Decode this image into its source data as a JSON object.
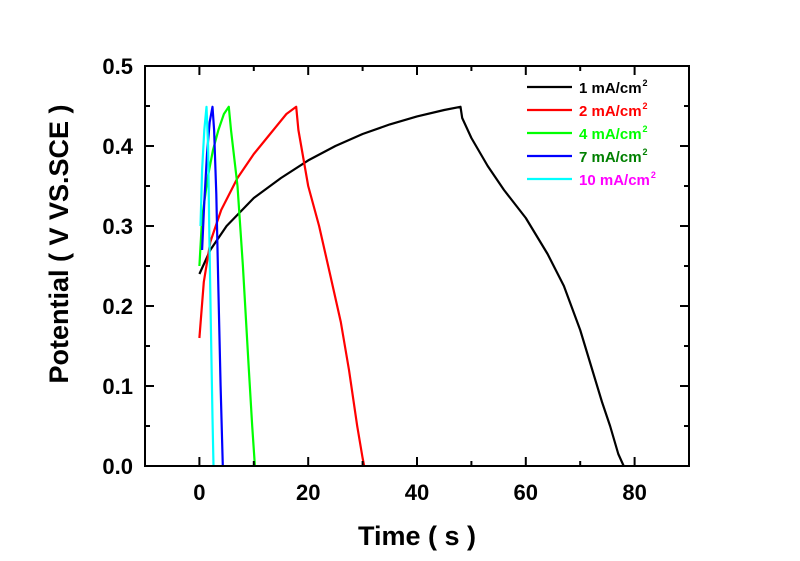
{
  "chart_data": {
    "type": "line",
    "title": "",
    "xlabel": "Time ( s )",
    "ylabel": "Potential ( V VS.SCE )",
    "xlim": [
      -10,
      90
    ],
    "ylim": [
      0.0,
      0.5
    ],
    "x_ticks": [
      {
        "value": 0,
        "label": "0"
      },
      {
        "value": 20,
        "label": "20"
      },
      {
        "value": 40,
        "label": "40"
      },
      {
        "value": 60,
        "label": "60"
      },
      {
        "value": 80,
        "label": "80"
      }
    ],
    "y_ticks": [
      {
        "value": 0.0,
        "label": "0.0"
      },
      {
        "value": 0.1,
        "label": "0.1"
      },
      {
        "value": 0.2,
        "label": "0.2"
      },
      {
        "value": 0.3,
        "label": "0.3"
      },
      {
        "value": 0.4,
        "label": "0.4"
      },
      {
        "value": 0.5,
        "label": "0.5"
      }
    ],
    "grid": false,
    "legend_position": "top-right",
    "series": [
      {
        "name": "1 mA/cm2",
        "legend_main": "1 mA/cm",
        "legend_sup": "2",
        "color": "#000000",
        "text_color": "#000000",
        "x": [
          0.0,
          2,
          5,
          10,
          15,
          20,
          25,
          30,
          35,
          40,
          45,
          48,
          48.3,
          50,
          53,
          56,
          60,
          64,
          67,
          70,
          72,
          74,
          75.5,
          77,
          78
        ],
        "y": [
          0.24,
          0.27,
          0.3,
          0.335,
          0.36,
          0.382,
          0.4,
          0.415,
          0.427,
          0.437,
          0.445,
          0.449,
          0.435,
          0.41,
          0.375,
          0.345,
          0.31,
          0.265,
          0.225,
          0.17,
          0.125,
          0.08,
          0.05,
          0.015,
          0.0
        ]
      },
      {
        "name": "2 mA/cm2",
        "legend_main": "2 mA/cm",
        "legend_sup": "2",
        "color": "#ff0000",
        "text_color": "#ff0000",
        "x": [
          0.0,
          0.8,
          2,
          4,
          7,
          10,
          13,
          16,
          17.8,
          18.2,
          20,
          22,
          24,
          26,
          27.5,
          29,
          30,
          30.3
        ],
        "y": [
          0.16,
          0.23,
          0.28,
          0.32,
          0.36,
          0.39,
          0.415,
          0.44,
          0.449,
          0.42,
          0.35,
          0.3,
          0.24,
          0.18,
          0.12,
          0.05,
          0.01,
          0.0
        ]
      },
      {
        "name": "4 mA/cm2",
        "legend_main": "4 mA/cm",
        "legend_sup": "2",
        "color": "#00ff00",
        "text_color": "#00ff00",
        "x": [
          0.0,
          0.5,
          1.5,
          2.5,
          3.5,
          4.5,
          5.4,
          5.8,
          7,
          8,
          9,
          9.7,
          10.2
        ],
        "y": [
          0.25,
          0.31,
          0.36,
          0.395,
          0.42,
          0.44,
          0.449,
          0.42,
          0.35,
          0.25,
          0.13,
          0.05,
          0.0
        ]
      },
      {
        "name": "7 mA/cm2",
        "legend_main": "7 mA/cm",
        "legend_sup": "2",
        "color": "#0000ff",
        "text_color": "#008000",
        "x": [
          0.5,
          0.9,
          1.4,
          1.9,
          2.4,
          2.7,
          3.1,
          3.5,
          3.9,
          4.3
        ],
        "y": [
          0.27,
          0.33,
          0.39,
          0.43,
          0.449,
          0.42,
          0.34,
          0.22,
          0.1,
          0.0
        ]
      },
      {
        "name": "10 mA/cm2",
        "legend_main": "10 mA/cm",
        "legend_sup": "2",
        "color": "#00ffff",
        "text_color": "#ff00ff",
        "x": [
          0.2,
          0.5,
          0.9,
          1.3,
          1.6,
          1.8,
          2.1,
          2.4,
          2.6
        ],
        "y": [
          0.3,
          0.37,
          0.42,
          0.449,
          0.4,
          0.3,
          0.18,
          0.06,
          0.0
        ]
      }
    ]
  }
}
